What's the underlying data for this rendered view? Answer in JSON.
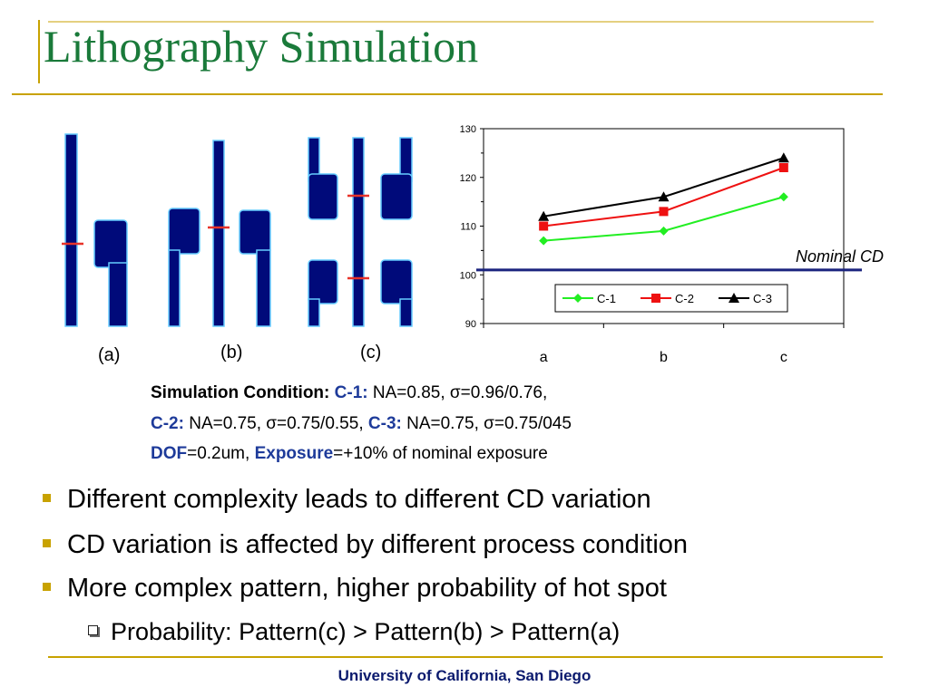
{
  "slide": {
    "title": "Lithography Simulation",
    "footer": "University of California, San Diego"
  },
  "patterns": {
    "labels": [
      "(a)",
      "(b)",
      "(c)"
    ]
  },
  "conditions": {
    "line1": {
      "prefix": "Simulation Condition: ",
      "c1": "C-1:",
      "c1_text": " NA=0.85, σ=0.96/0.76,"
    },
    "line2": {
      "c2": "C-2:",
      "c2_text": " NA=0.75, σ=0.75/0.55, ",
      "c3": "C-3:",
      "c3_text": " NA=0.75, σ=0.75/045"
    },
    "line3": {
      "dof": "DOF",
      "dof_text": "=0.2um, ",
      "exposure": "Exposure",
      "exposure_text": "=+10% of nominal exposure"
    }
  },
  "bullets": [
    "Different complexity leads to different CD variation",
    "CD variation is affected by different process condition",
    "More complex pattern, higher probability of hot spot"
  ],
  "sub_bullets": [
    "Probability: Pattern(c) > Pattern(b) > Pattern(a)"
  ],
  "colors": {
    "title": "#1a7a3a",
    "accent_gold": "#c8a200",
    "pattern_fill": "#000a7a",
    "pattern_outline": "#66ccff",
    "cd_mark": "#e8332a",
    "nominal_line": "#1a237e"
  },
  "chart_data": {
    "type": "line",
    "categories": [
      "a",
      "b",
      "c"
    ],
    "series": [
      {
        "name": "C-1",
        "values": [
          107,
          109,
          116
        ],
        "color": "#22ee22",
        "marker": "diamond"
      },
      {
        "name": "C-2",
        "values": [
          110,
          113,
          122
        ],
        "color": "#ee1111",
        "marker": "square"
      },
      {
        "name": "C-3",
        "values": [
          112,
          116,
          124
        ],
        "color": "#000000",
        "marker": "triangle"
      }
    ],
    "ylim": [
      90,
      130
    ],
    "yticks": [
      "90",
      "100",
      "110",
      "120",
      "130"
    ],
    "nominal": {
      "label": "Nominal CD",
      "value": 101
    },
    "legend": "bottom-right, inside plot",
    "grid": false
  }
}
